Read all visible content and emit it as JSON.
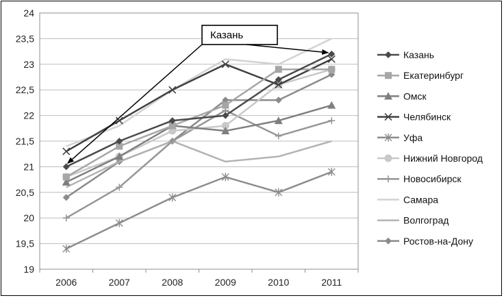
{
  "chart_data": {
    "type": "line",
    "title": "",
    "xlabel": "",
    "ylabel": "",
    "categories": [
      "2006",
      "2007",
      "2008",
      "2009",
      "2010",
      "2011"
    ],
    "y_ticks": [
      "24",
      "23,5",
      "23",
      "22,5",
      "22",
      "21,5",
      "21",
      "20,5",
      "20",
      "19,5",
      "19"
    ],
    "ylim": [
      19,
      24
    ],
    "grid": "horizontal",
    "legend_position": "right",
    "series": [
      {
        "name": "Казань",
        "values": [
          21.0,
          21.5,
          21.9,
          22.0,
          22.7,
          23.2
        ],
        "color": "#4a4a4a",
        "marker": "diamond"
      },
      {
        "name": "Екатеринбург",
        "values": [
          20.8,
          21.4,
          21.8,
          22.2,
          22.9,
          22.9
        ],
        "color": "#a6a6a6",
        "marker": "square"
      },
      {
        "name": "Омск",
        "values": [
          20.7,
          21.2,
          21.8,
          21.7,
          21.9,
          22.2
        ],
        "color": "#7f7f7f",
        "marker": "triangle"
      },
      {
        "name": "Челябинск",
        "values": [
          21.3,
          21.9,
          22.5,
          23.0,
          22.6,
          23.1
        ],
        "color": "#404040",
        "marker": "x"
      },
      {
        "name": "Уфа",
        "values": [
          19.4,
          19.9,
          20.4,
          20.8,
          20.5,
          20.9
        ],
        "color": "#8c8c8c",
        "marker": "star"
      },
      {
        "name": "Нижний Новгород",
        "values": [
          20.8,
          21.2,
          21.7,
          21.8,
          22.6,
          22.9
        ],
        "color": "#c8c8c8",
        "marker": "circle"
      },
      {
        "name": "Новосибирск",
        "values": [
          20.0,
          20.6,
          21.5,
          22.1,
          21.6,
          21.9
        ],
        "color": "#969696",
        "marker": "plus"
      },
      {
        "name": "Самара",
        "values": [
          21.4,
          21.8,
          22.5,
          23.1,
          23.0,
          23.5
        ],
        "color": "#d2d2d2",
        "marker": "none"
      },
      {
        "name": "Волгоград",
        "values": [
          20.6,
          21.1,
          21.5,
          21.1,
          21.2,
          21.5
        ],
        "color": "#b3b3b3",
        "marker": "none"
      },
      {
        "name": "Ростов-на-Дону",
        "values": [
          20.4,
          21.1,
          21.5,
          22.3,
          22.3,
          22.8
        ],
        "color": "#8a8a8a",
        "marker": "diamond"
      }
    ],
    "annotation": {
      "text": "Казань",
      "points_to": [
        "2006",
        "2011"
      ],
      "series": "Казань"
    }
  }
}
